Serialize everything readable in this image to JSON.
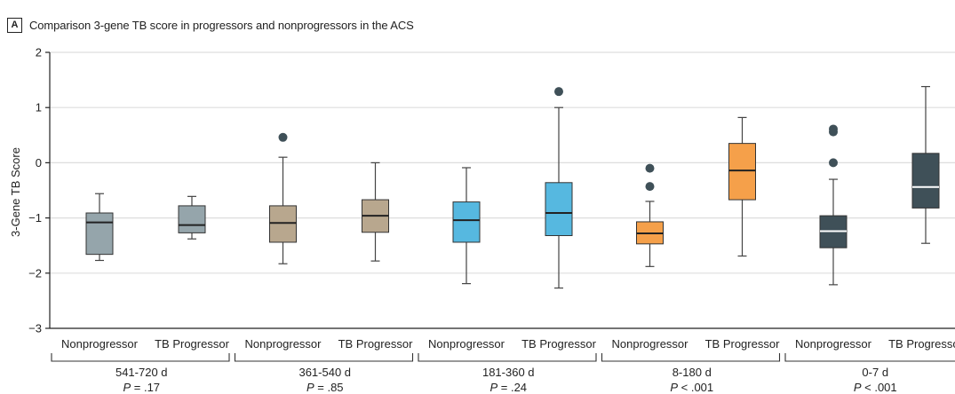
{
  "panel": {
    "letter": "A",
    "title": "Comparison 3-gene TB score in progressors and nonprogressors in the ACS"
  },
  "chart_data": {
    "type": "box",
    "ylabel": "3-Gene TB Score",
    "ylim": [
      -3,
      2
    ],
    "yticks": [
      -3,
      -2,
      -1,
      0,
      1,
      2
    ],
    "grid": "horizontal",
    "groups": [
      {
        "label": "541-720 d",
        "p_prefix": "P",
        "p_value": " = .17",
        "boxes": [
          {
            "category": "Nonprogressor",
            "color": "#95a5ab",
            "median_color": "#222222",
            "whisker_low": -1.77,
            "q1": -1.66,
            "median": -1.08,
            "q3": -0.91,
            "whisker_high": -0.56,
            "outliers": []
          },
          {
            "category": "TB Progressor",
            "color": "#95a5ab",
            "median_color": "#222222",
            "whisker_low": -1.38,
            "q1": -1.27,
            "median": -1.13,
            "q3": -0.78,
            "whisker_high": -0.61,
            "outliers": []
          }
        ]
      },
      {
        "label": "361-540 d",
        "p_prefix": "P",
        "p_value": " = .85",
        "boxes": [
          {
            "category": "Nonprogressor",
            "color": "#b8a78e",
            "median_color": "#222222",
            "whisker_low": -1.83,
            "q1": -1.44,
            "median": -1.09,
            "q3": -0.78,
            "whisker_high": 0.1,
            "outliers": [
              0.46
            ]
          },
          {
            "category": "TB Progressor",
            "color": "#b8a78e",
            "median_color": "#222222",
            "whisker_low": -1.78,
            "q1": -1.26,
            "median": -0.96,
            "q3": -0.67,
            "whisker_high": 0.0,
            "outliers": []
          }
        ]
      },
      {
        "label": "181-360 d",
        "p_prefix": "P",
        "p_value": " = .24",
        "boxes": [
          {
            "category": "Nonprogressor",
            "color": "#56b8e0",
            "median_color": "#222222",
            "whisker_low": -2.19,
            "q1": -1.44,
            "median": -1.04,
            "q3": -0.71,
            "whisker_high": -0.09,
            "outliers": []
          },
          {
            "category": "TB Progressor",
            "color": "#56b8e0",
            "median_color": "#222222",
            "whisker_low": -2.27,
            "q1": -1.32,
            "median": -0.91,
            "q3": -0.36,
            "whisker_high": 1.0,
            "outliers": [
              1.29
            ]
          }
        ]
      },
      {
        "label": "8-180 d",
        "p_prefix": "P",
        "p_value": " < .001",
        "boxes": [
          {
            "category": "Nonprogressor",
            "color": "#f5a04a",
            "median_color": "#222222",
            "whisker_low": -1.88,
            "q1": -1.47,
            "median": -1.28,
            "q3": -1.07,
            "whisker_high": -0.7,
            "outliers": [
              -0.43,
              -0.1
            ]
          },
          {
            "category": "TB Progressor",
            "color": "#f5a04a",
            "median_color": "#222222",
            "whisker_low": -1.69,
            "q1": -0.67,
            "median": -0.14,
            "q3": 0.35,
            "whisker_high": 0.82,
            "outliers": []
          }
        ]
      },
      {
        "label": "0-7 d",
        "p_prefix": "P",
        "p_value": " < .001",
        "boxes": [
          {
            "category": "Nonprogressor",
            "color": "#3f5058",
            "median_color": "#ffffff",
            "whisker_low": -2.21,
            "q1": -1.54,
            "median": -1.24,
            "q3": -0.96,
            "whisker_high": -0.3,
            "outliers": [
              0.0,
              0.56,
              0.61
            ]
          },
          {
            "category": "TB Progressor",
            "color": "#3f5058",
            "median_color": "#ffffff",
            "whisker_low": -1.46,
            "q1": -0.82,
            "median": -0.44,
            "q3": 0.17,
            "whisker_high": 1.38,
            "outliers": []
          }
        ]
      }
    ],
    "colors": {
      "axis": "#222222",
      "grid": "#dddddd",
      "whisker": "#444444",
      "outlier": "#3f5058"
    }
  }
}
